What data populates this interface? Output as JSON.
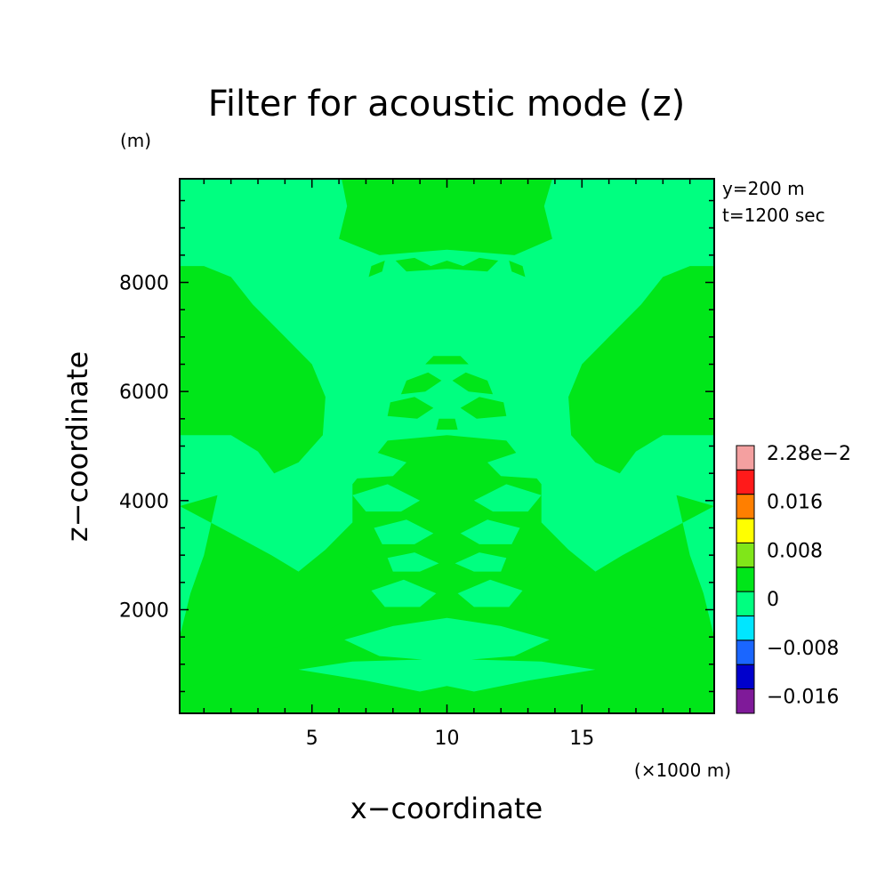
{
  "chart_data": {
    "type": "heatmap",
    "title": "Filter for acoustic mode (z)",
    "y_unit": "(m)",
    "x_unit": "(×1000 m)",
    "xlabel": "x−coordinate",
    "ylabel": "z−coordinate",
    "annotations": [
      "y=200 m",
      "t=1200 sec"
    ],
    "xlim": [
      0.1,
      19.9
    ],
    "ylim": [
      100,
      9900
    ],
    "x_ticks": [
      5,
      10,
      15
    ],
    "y_ticks": [
      2000,
      4000,
      6000,
      8000
    ],
    "x_tick_labels": [
      "5",
      "10",
      "15"
    ],
    "y_tick_labels": [
      "2000",
      "4000",
      "6000",
      "8000"
    ],
    "background_level": "0",
    "colorbar": {
      "levels": [
        {
          "label": "2.28e−2",
          "color": "#f4a0a0"
        },
        {
          "label": "",
          "color": "#ff1a1a"
        },
        {
          "label": "0.016",
          "color": "#ff7f00"
        },
        {
          "label": "",
          "color": "#ffff00"
        },
        {
          "label": "0.008",
          "color": "#80e619"
        },
        {
          "label": "",
          "color": "#00e619"
        },
        {
          "label": "0",
          "color": "#00ff80"
        },
        {
          "label": "",
          "color": "#00e6ff"
        },
        {
          "label": "−0.008",
          "color": "#1a66ff"
        },
        {
          "label": "",
          "color": "#0000cc"
        },
        {
          "label": "−0.016",
          "color": "#7f1a99"
        }
      ]
    },
    "positive_regions": [
      {
        "name": "left-lobe",
        "points": [
          [
            0.1,
            8300
          ],
          [
            1,
            8300
          ],
          [
            2,
            8100
          ],
          [
            2.8,
            7600
          ],
          [
            4,
            7000
          ],
          [
            5,
            6500
          ],
          [
            5.5,
            5900
          ],
          [
            5.4,
            5200
          ],
          [
            4.5,
            4700
          ],
          [
            3.6,
            4500
          ],
          [
            3,
            4900
          ],
          [
            2,
            5200
          ],
          [
            0.1,
            5200
          ]
        ]
      },
      {
        "name": "right-lobe",
        "points": [
          [
            19.9,
            8300
          ],
          [
            19,
            8300
          ],
          [
            18,
            8100
          ],
          [
            17.2,
            7600
          ],
          [
            16,
            7000
          ],
          [
            15,
            6500
          ],
          [
            14.5,
            5900
          ],
          [
            14.6,
            5200
          ],
          [
            15.5,
            4700
          ],
          [
            16.4,
            4500
          ],
          [
            17,
            4900
          ],
          [
            18,
            5200
          ],
          [
            19.9,
            5200
          ]
        ]
      },
      {
        "name": "top-plume",
        "points": [
          [
            6.1,
            9900
          ],
          [
            13.9,
            9900
          ],
          [
            13.6,
            9400
          ],
          [
            13.9,
            8800
          ],
          [
            12.5,
            8500
          ],
          [
            10,
            8600
          ],
          [
            7.5,
            8500
          ],
          [
            6,
            8800
          ],
          [
            6.3,
            9400
          ]
        ]
      },
      {
        "name": "lower-mass",
        "points": [
          [
            0.1,
            3900
          ],
          [
            1.5,
            4100
          ],
          [
            1,
            3000
          ],
          [
            0.5,
            2300
          ],
          [
            0.1,
            1500
          ],
          [
            0.1,
            100
          ],
          [
            19.9,
            100
          ],
          [
            19.9,
            1500
          ],
          [
            19.5,
            2300
          ],
          [
            19,
            3000
          ],
          [
            18.5,
            4100
          ],
          [
            19.9,
            3900
          ],
          [
            18,
            3400
          ],
          [
            16.5,
            3000
          ],
          [
            15.5,
            2700
          ],
          [
            14.5,
            3100
          ],
          [
            13.5,
            3600
          ],
          [
            13.5,
            4300
          ],
          [
            12.2,
            5100
          ],
          [
            10,
            5200
          ],
          [
            7.8,
            5100
          ],
          [
            6.5,
            4300
          ],
          [
            6.5,
            3600
          ],
          [
            5.5,
            3100
          ],
          [
            4.5,
            2700
          ],
          [
            3.5,
            3000
          ],
          [
            2,
            3400
          ]
        ]
      },
      {
        "name": "side-ridge-left",
        "points": [
          [
            0.1,
            1200
          ],
          [
            3,
            1800
          ],
          [
            5,
            2400
          ],
          [
            6.5,
            3000
          ],
          [
            7.5,
            2600
          ],
          [
            7,
            2000
          ],
          [
            5.5,
            1600
          ],
          [
            3,
            1200
          ],
          [
            1,
            700
          ],
          [
            0.1,
            500
          ]
        ]
      },
      {
        "name": "side-ridge-right",
        "points": [
          [
            19.9,
            1200
          ],
          [
            17,
            1800
          ],
          [
            15,
            2400
          ],
          [
            13.5,
            3000
          ],
          [
            12.5,
            2600
          ],
          [
            13,
            2000
          ],
          [
            14.5,
            1600
          ],
          [
            17,
            1200
          ],
          [
            19,
            700
          ],
          [
            19.9,
            500
          ]
        ]
      }
    ],
    "background_islands": [
      {
        "name": "core-left-1",
        "points": [
          [
            5.5,
            4700
          ],
          [
            7,
            4950
          ],
          [
            8.5,
            4700
          ],
          [
            8,
            4450
          ],
          [
            6.5,
            4400
          ]
        ]
      },
      {
        "name": "core-right-1",
        "points": [
          [
            14.5,
            4700
          ],
          [
            13,
            4950
          ],
          [
            11.5,
            4700
          ],
          [
            12,
            4450
          ],
          [
            13.5,
            4400
          ]
        ]
      },
      {
        "name": "core-left-2",
        "points": [
          [
            6.5,
            4100
          ],
          [
            7.8,
            4300
          ],
          [
            9,
            4000
          ],
          [
            8.3,
            3800
          ],
          [
            7,
            3800
          ]
        ]
      },
      {
        "name": "core-right-2",
        "points": [
          [
            13.5,
            4100
          ],
          [
            12.2,
            4300
          ],
          [
            11,
            4000
          ],
          [
            11.7,
            3800
          ],
          [
            13,
            3800
          ]
        ]
      },
      {
        "name": "core-left-3",
        "points": [
          [
            7.3,
            3500
          ],
          [
            8.5,
            3650
          ],
          [
            9.5,
            3400
          ],
          [
            8.8,
            3200
          ],
          [
            7.6,
            3200
          ]
        ]
      },
      {
        "name": "core-right-3",
        "points": [
          [
            12.7,
            3500
          ],
          [
            11.5,
            3650
          ],
          [
            10.5,
            3400
          ],
          [
            11.2,
            3200
          ],
          [
            12.4,
            3200
          ]
        ]
      },
      {
        "name": "core-left-4",
        "points": [
          [
            7.8,
            2950
          ],
          [
            8.8,
            3050
          ],
          [
            9.7,
            2850
          ],
          [
            9,
            2700
          ],
          [
            8,
            2700
          ]
        ]
      },
      {
        "name": "core-right-4",
        "points": [
          [
            12.2,
            2950
          ],
          [
            11.2,
            3050
          ],
          [
            10.3,
            2850
          ],
          [
            11,
            2700
          ],
          [
            12,
            2700
          ]
        ]
      },
      {
        "name": "core-left-5",
        "points": [
          [
            7.2,
            2350
          ],
          [
            8.4,
            2550
          ],
          [
            9.6,
            2300
          ],
          [
            9,
            2050
          ],
          [
            7.7,
            2050
          ]
        ]
      },
      {
        "name": "core-right-5",
        "points": [
          [
            12.8,
            2350
          ],
          [
            11.6,
            2550
          ],
          [
            10.4,
            2300
          ],
          [
            11,
            2050
          ],
          [
            12.3,
            2050
          ]
        ]
      },
      {
        "name": "core-bottom",
        "points": [
          [
            6.2,
            1450
          ],
          [
            8,
            1700
          ],
          [
            10,
            1850
          ],
          [
            12,
            1700
          ],
          [
            13.8,
            1450
          ],
          [
            12.5,
            1150
          ],
          [
            10,
            1050
          ],
          [
            7.5,
            1150
          ]
        ]
      },
      {
        "name": "core-base",
        "points": [
          [
            4.5,
            900
          ],
          [
            7,
            700
          ],
          [
            9,
            500
          ],
          [
            10,
            600
          ],
          [
            11,
            500
          ],
          [
            13,
            700
          ],
          [
            15.5,
            900
          ],
          [
            13.5,
            1050
          ],
          [
            10,
            1100
          ],
          [
            6.5,
            1050
          ]
        ]
      }
    ],
    "positive_blobs": [
      {
        "name": "blob-1",
        "points": [
          [
            9.5,
            6650
          ],
          [
            10.5,
            6650
          ],
          [
            10.8,
            6500
          ],
          [
            9.2,
            6500
          ]
        ]
      },
      {
        "name": "blob-2",
        "points": [
          [
            8.5,
            6200
          ],
          [
            9.3,
            6350
          ],
          [
            9.8,
            6200
          ],
          [
            9.2,
            6000
          ],
          [
            8.3,
            5950
          ]
        ]
      },
      {
        "name": "blob-3",
        "points": [
          [
            11.5,
            6200
          ],
          [
            10.7,
            6350
          ],
          [
            10.2,
            6200
          ],
          [
            10.8,
            6000
          ],
          [
            11.7,
            5950
          ]
        ]
      },
      {
        "name": "blob-4",
        "points": [
          [
            7.9,
            5800
          ],
          [
            8.8,
            5900
          ],
          [
            9.5,
            5700
          ],
          [
            8.9,
            5500
          ],
          [
            7.8,
            5550
          ]
        ]
      },
      {
        "name": "blob-5",
        "points": [
          [
            12.1,
            5800
          ],
          [
            11.2,
            5900
          ],
          [
            10.5,
            5700
          ],
          [
            11.1,
            5500
          ],
          [
            12.2,
            5550
          ]
        ]
      },
      {
        "name": "blob-6",
        "points": [
          [
            9.7,
            5500
          ],
          [
            10.3,
            5500
          ],
          [
            10.4,
            5300
          ],
          [
            9.6,
            5300
          ]
        ]
      },
      {
        "name": "blob-7",
        "points": [
          [
            8.1,
            8400
          ],
          [
            8.8,
            8450
          ],
          [
            9.4,
            8300
          ],
          [
            10,
            8400
          ],
          [
            10.6,
            8300
          ],
          [
            11.2,
            8450
          ],
          [
            11.9,
            8400
          ],
          [
            11.5,
            8200
          ],
          [
            10,
            8250
          ],
          [
            8.5,
            8200
          ]
        ]
      },
      {
        "name": "blob-8",
        "points": [
          [
            7.2,
            8300
          ],
          [
            7.7,
            8400
          ],
          [
            7.6,
            8200
          ],
          [
            7.1,
            8100
          ]
        ]
      },
      {
        "name": "blob-9",
        "points": [
          [
            12.8,
            8300
          ],
          [
            12.3,
            8400
          ],
          [
            12.4,
            8200
          ],
          [
            12.9,
            8100
          ]
        ]
      }
    ]
  }
}
